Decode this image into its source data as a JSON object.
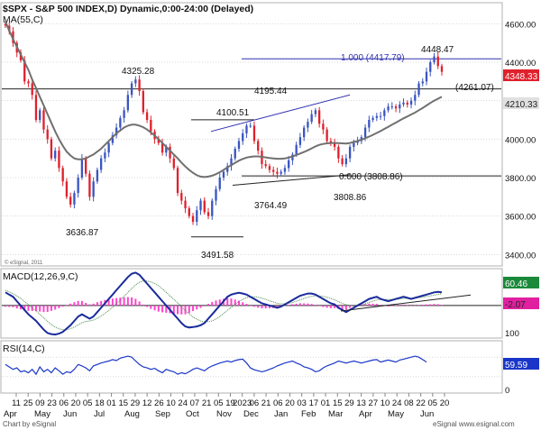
{
  "header": {
    "title": "$SPX - S&P 500 INDEX,D) Dynamic,0:00-24:00 (Delayed)",
    "ma_label": "MA(55,C)",
    "footer_left": "Chart by eSignal",
    "footer_right": "eSignal www.esignal.com",
    "copyright": "© eSignal, 2011"
  },
  "colors": {
    "price_up": "#3a55c0",
    "price_down": "#e0202c",
    "ma": "#707070",
    "trendline": "#3030b0",
    "macd": "#1a2b9c",
    "signal": "#4a8a4a",
    "histogram": "#ff44cc",
    "rsi": "#1a36c8",
    "macd_badge": "#1a8a3a",
    "signal_badge": "#e020a0",
    "rsi_badge": "#1a36c8",
    "grid": "#d8d8d8"
  },
  "chart_data": [
    {
      "type": "candlestick",
      "title": "$SPX - S&P 500 INDEX,D) Dynamic,0:00-24:00 (Delayed)",
      "x_tick_labels": [
        "11",
        "25",
        "09",
        "23",
        "06",
        "20",
        "05",
        "18",
        "01",
        "15",
        "29",
        "12",
        "26",
        "10",
        "24",
        "07",
        "21",
        "05",
        "19",
        "2023",
        "06",
        "21",
        "06",
        "20",
        "03",
        "17",
        "01",
        "15",
        "29",
        "13",
        "27",
        "10",
        "24",
        "08",
        "22",
        "05",
        "20"
      ],
      "month_labels": [
        "Apr",
        "May",
        "Jun",
        "Jul",
        "Aug",
        "Sep",
        "Oct",
        "Nov",
        "Dec",
        "Jan",
        "Feb",
        "Mar",
        "Apr",
        "May",
        "Jun"
      ],
      "ylim": [
        3350,
        4700
      ],
      "y_ticks": [
        3400,
        3600,
        3800,
        4000,
        4200,
        4400,
        4600
      ],
      "y_tick_labels": [
        "3400.00",
        "3600.00",
        "3800.00",
        "4000.00",
        "4200.00",
        "4400.00",
        "4600.00"
      ],
      "last_price": 4348.33,
      "last_price_label": "4348.33",
      "ma_value_label": "4210.33",
      "level_4261_label": "(4261.07)",
      "level_4261": 4261.07,
      "fib_100_label": "1.000 (4417.79)",
      "fib_100": 4417.79,
      "fib_0_label": "0.000 (3808.86)",
      "fib_0": 3808.86,
      "swing_labels": [
        "4448.47",
        "4325.28",
        "4195.44",
        "4100.51",
        "3636.87",
        "3764.49",
        "3808.86",
        "3491.58"
      ],
      "series": [
        {
          "name": "Close",
          "values": [
            4590,
            4560,
            4500,
            4450,
            4410,
            4300,
            4290,
            4230,
            4100,
            4150,
            4050,
            4000,
            3900,
            3940,
            3850,
            3780,
            3700,
            3660,
            3720,
            3800,
            3900,
            3820,
            3700,
            3780,
            3840,
            3900,
            3930,
            3980,
            4020,
            4060,
            4110,
            4150,
            4230,
            4290,
            4310,
            4250,
            4140,
            4100,
            4040,
            4000,
            3980,
            3930,
            3960,
            3900,
            3850,
            3720,
            3680,
            3640,
            3600,
            3570,
            3630,
            3680,
            3620,
            3600,
            3680,
            3740,
            3800,
            3830,
            3860,
            3900,
            3950,
            3990,
            4030,
            4070,
            4070,
            3990,
            3940,
            3870,
            3860,
            3840,
            3830,
            3820,
            3830,
            3850,
            3890,
            3920,
            3970,
            4010,
            4060,
            4090,
            4130,
            4150,
            4080,
            4050,
            3990,
            3980,
            3960,
            3900,
            3870,
            3900,
            3960,
            3980,
            3990,
            4010,
            4060,
            4100,
            4110,
            4120,
            4120,
            4150,
            4170,
            4170,
            4160,
            4180,
            4190,
            4180,
            4200,
            4230,
            4290,
            4300,
            4350,
            4400,
            4430,
            4380,
            4350
          ]
        },
        {
          "name": "MA(55,C)",
          "values": [
            4610,
            4565,
            4520,
            4480,
            4440,
            4400,
            4360,
            4310,
            4265,
            4220,
            4175,
            4130,
            4085,
            4040,
            4000,
            3965,
            3935,
            3915,
            3900,
            3895,
            3895,
            3900,
            3910,
            3920,
            3935,
            3950,
            3970,
            3990,
            4010,
            4030,
            4045,
            4060,
            4070,
            4075,
            4075,
            4070,
            4062,
            4050,
            4035,
            4018,
            4000,
            3980,
            3960,
            3940,
            3920,
            3900,
            3878,
            3858,
            3840,
            3825,
            3812,
            3805,
            3803,
            3805,
            3810,
            3818,
            3828,
            3840,
            3853,
            3865,
            3877,
            3888,
            3897,
            3904,
            3908,
            3910,
            3910,
            3908,
            3905,
            3902,
            3900,
            3898,
            3898,
            3900,
            3904,
            3910,
            3917,
            3925,
            3933,
            3942,
            3952,
            3962,
            3970,
            3975,
            3978,
            3980,
            3980,
            3979,
            3978,
            3977,
            3980,
            3985,
            3990,
            3997,
            4005,
            4013,
            4022,
            4032,
            4042,
            4053,
            4064,
            4075,
            4086,
            4097,
            4108,
            4118,
            4128,
            4138,
            4150,
            4162,
            4175,
            4188,
            4200,
            4210,
            4220
          ]
        }
      ]
    },
    {
      "type": "line",
      "title": "MACD(12,26,9,C)",
      "ylim": [
        -140,
        160
      ],
      "y_tick_labels": [
        "100"
      ],
      "macd_value_label": "60.46",
      "signal_value_label": "-2.07",
      "series": [
        {
          "name": "MACD",
          "values": [
            60,
            50,
            40,
            20,
            0,
            -20,
            -40,
            -55,
            -70,
            -90,
            -110,
            -125,
            -130,
            -132,
            -128,
            -120,
            -105,
            -90,
            -70,
            -50,
            -40,
            -50,
            -60,
            -50,
            -30,
            -10,
            10,
            30,
            50,
            70,
            90,
            110,
            130,
            145,
            150,
            140,
            120,
            100,
            80,
            60,
            40,
            20,
            0,
            -20,
            -40,
            -60,
            -80,
            -95,
            -100,
            -98,
            -95,
            -90,
            -80,
            -60,
            -40,
            -20,
            0,
            20,
            40,
            50,
            55,
            58,
            55,
            50,
            40,
            30,
            20,
            10,
            5,
            0,
            -5,
            -10,
            -5,
            5,
            15,
            25,
            35,
            45,
            50,
            55,
            55,
            50,
            40,
            30,
            20,
            10,
            5,
            -10,
            -20,
            -30,
            -20,
            -10,
            0,
            10,
            20,
            30,
            35,
            40,
            30,
            25,
            20,
            25,
            30,
            35,
            40,
            35,
            30,
            35,
            40,
            45,
            50,
            55,
            60,
            62,
            60
          ]
        },
        {
          "name": "Signal",
          "values": [
            70,
            62,
            54,
            44,
            32,
            18,
            4,
            -10,
            -24,
            -40,
            -56,
            -72,
            -86,
            -98,
            -106,
            -110,
            -110,
            -106,
            -98,
            -88,
            -78,
            -72,
            -70,
            -66,
            -58,
            -48,
            -36,
            -22,
            -8,
            8,
            24,
            42,
            60,
            78,
            94,
            106,
            112,
            112,
            108,
            100,
            90,
            76,
            60,
            44,
            28,
            12,
            -6,
            -22,
            -38,
            -52,
            -62,
            -70,
            -74,
            -74,
            -70,
            -62,
            -50,
            -36,
            -22,
            -8,
            6,
            18,
            28,
            36,
            40,
            40,
            38,
            34,
            28,
            22,
            16,
            10,
            8,
            8,
            10,
            14,
            20,
            26,
            32,
            38,
            42,
            44,
            44,
            42,
            38,
            32,
            26,
            18,
            10,
            4,
            0,
            -2,
            0,
            4,
            8,
            14,
            20,
            26,
            28,
            28,
            28,
            28,
            28,
            30,
            32,
            33,
            33,
            34,
            36,
            38,
            41,
            44,
            47,
            51,
            54
          ]
        }
      ]
    },
    {
      "type": "line",
      "title": "RSI(14,C)",
      "ylim": [
        0,
        100
      ],
      "value_label": "59.59",
      "series": [
        {
          "name": "RSI",
          "values": [
            55,
            50,
            45,
            48,
            40,
            42,
            38,
            45,
            35,
            50,
            40,
            45,
            38,
            48,
            42,
            35,
            40,
            38,
            45,
            55,
            52,
            48,
            42,
            52,
            55,
            58,
            60,
            62,
            65,
            63,
            68,
            70,
            72,
            70,
            62,
            55,
            50,
            48,
            45,
            47,
            42,
            38,
            45,
            42,
            40,
            35,
            38,
            36,
            40,
            45,
            48,
            45,
            42,
            48,
            52,
            55,
            58,
            60,
            62,
            60,
            63,
            65,
            66,
            58,
            48,
            44,
            42,
            40,
            42,
            45,
            48,
            52,
            55,
            58,
            60,
            62,
            58,
            55,
            50,
            48,
            45,
            40,
            42,
            48,
            52,
            55,
            58,
            62,
            60,
            58,
            60,
            62,
            60,
            58,
            60,
            62,
            64,
            65,
            60,
            62,
            64,
            62,
            60,
            64,
            66,
            68,
            70,
            72,
            70,
            65,
            60
          ]
        }
      ]
    }
  ]
}
